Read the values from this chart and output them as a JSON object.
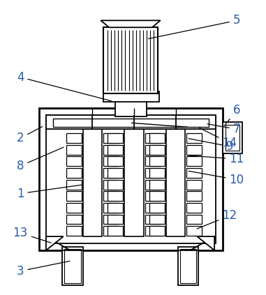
{
  "bg_color": "#ffffff",
  "line_color": "#000000",
  "label_fontsize": 12
}
